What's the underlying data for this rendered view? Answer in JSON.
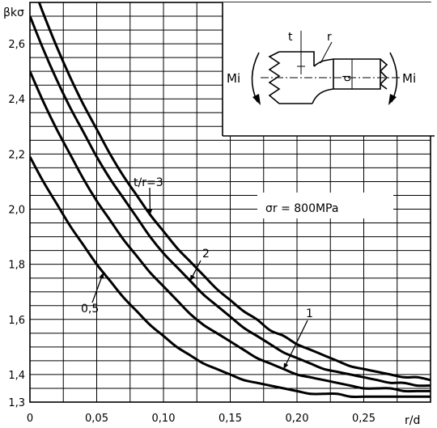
{
  "chart_data": {
    "type": "line",
    "title": "",
    "xlabel": "r/d",
    "ylabel": "βkσ",
    "xlim": [
      0,
      0.3
    ],
    "ylim": [
      1.3,
      2.75
    ],
    "xticks": [
      0,
      0.05,
      0.1,
      0.15,
      0.2,
      0.25
    ],
    "xtick_labels": [
      "0",
      "0,05",
      "0,10",
      "0,15",
      "0,20",
      "0,25"
    ],
    "yticks": [
      1.3,
      1.4,
      1.6,
      1.8,
      2.0,
      2.2,
      2.4,
      2.6
    ],
    "ytick_labels": [
      "1,3",
      "1,4",
      "1,6",
      "1,8",
      "2,0",
      "2,2",
      "2,4",
      "2,6"
    ],
    "grid": true,
    "annotation": "σr = 800MPa",
    "series": [
      {
        "name": "t/r=3",
        "x": [
          0,
          0.01,
          0.02,
          0.03,
          0.04,
          0.05,
          0.06,
          0.07,
          0.08,
          0.09,
          0.1,
          0.11,
          0.12,
          0.13,
          0.14,
          0.15,
          0.16,
          0.17,
          0.18,
          0.19,
          0.2,
          0.21,
          0.22,
          0.23,
          0.24,
          0.25,
          0.26,
          0.27,
          0.28,
          0.29,
          0.3
        ],
        "y": [
          2.84,
          2.71,
          2.59,
          2.48,
          2.38,
          2.29,
          2.2,
          2.12,
          2.05,
          1.98,
          1.92,
          1.86,
          1.81,
          1.76,
          1.71,
          1.67,
          1.63,
          1.6,
          1.56,
          1.54,
          1.51,
          1.49,
          1.47,
          1.45,
          1.43,
          1.42,
          1.41,
          1.4,
          1.39,
          1.39,
          1.38
        ]
      },
      {
        "name": "2",
        "x": [
          0,
          0.01,
          0.02,
          0.03,
          0.04,
          0.05,
          0.06,
          0.07,
          0.08,
          0.09,
          0.1,
          0.11,
          0.12,
          0.13,
          0.14,
          0.15,
          0.16,
          0.17,
          0.18,
          0.19,
          0.2,
          0.21,
          0.22,
          0.23,
          0.24,
          0.25,
          0.26,
          0.27,
          0.28,
          0.29,
          0.3
        ],
        "y": [
          2.7,
          2.58,
          2.47,
          2.37,
          2.28,
          2.19,
          2.11,
          2.04,
          1.97,
          1.9,
          1.84,
          1.79,
          1.74,
          1.69,
          1.65,
          1.61,
          1.57,
          1.54,
          1.51,
          1.48,
          1.46,
          1.44,
          1.42,
          1.41,
          1.4,
          1.39,
          1.38,
          1.37,
          1.37,
          1.36,
          1.36
        ]
      },
      {
        "name": "1",
        "x": [
          0,
          0.01,
          0.02,
          0.03,
          0.04,
          0.05,
          0.06,
          0.07,
          0.08,
          0.09,
          0.1,
          0.11,
          0.12,
          0.13,
          0.14,
          0.15,
          0.16,
          0.17,
          0.18,
          0.19,
          0.2,
          0.21,
          0.22,
          0.23,
          0.24,
          0.25,
          0.26,
          0.27,
          0.28,
          0.29,
          0.3
        ],
        "y": [
          2.5,
          2.39,
          2.29,
          2.2,
          2.11,
          2.03,
          1.96,
          1.89,
          1.83,
          1.77,
          1.72,
          1.67,
          1.62,
          1.58,
          1.55,
          1.52,
          1.49,
          1.46,
          1.44,
          1.42,
          1.4,
          1.39,
          1.38,
          1.37,
          1.36,
          1.35,
          1.35,
          1.35,
          1.34,
          1.34,
          1.34
        ]
      },
      {
        "name": "0,5",
        "x": [
          0,
          0.01,
          0.02,
          0.03,
          0.04,
          0.05,
          0.06,
          0.07,
          0.08,
          0.09,
          0.1,
          0.11,
          0.12,
          0.13,
          0.14,
          0.15,
          0.16,
          0.17,
          0.18,
          0.19,
          0.2,
          0.21,
          0.22,
          0.23,
          0.24,
          0.25,
          0.26,
          0.27,
          0.28,
          0.29,
          0.3
        ],
        "y": [
          2.19,
          2.1,
          2.02,
          1.94,
          1.87,
          1.8,
          1.74,
          1.68,
          1.63,
          1.58,
          1.54,
          1.5,
          1.47,
          1.44,
          1.42,
          1.4,
          1.38,
          1.37,
          1.36,
          1.35,
          1.34,
          1.33,
          1.33,
          1.33,
          1.32,
          1.32,
          1.32,
          1.32,
          1.32,
          1.32,
          1.32
        ]
      }
    ],
    "series_label_points": [
      {
        "series": 0,
        "x": 0.09
      },
      {
        "series": 1,
        "x": 0.12
      },
      {
        "series": 2,
        "x": 0.19
      },
      {
        "series": 3,
        "x": 0.055
      }
    ]
  },
  "inset": {
    "moment_left": "Mi",
    "moment_right": "Mi",
    "dim_t": "t",
    "dim_r": "r",
    "dim_d": "d"
  }
}
